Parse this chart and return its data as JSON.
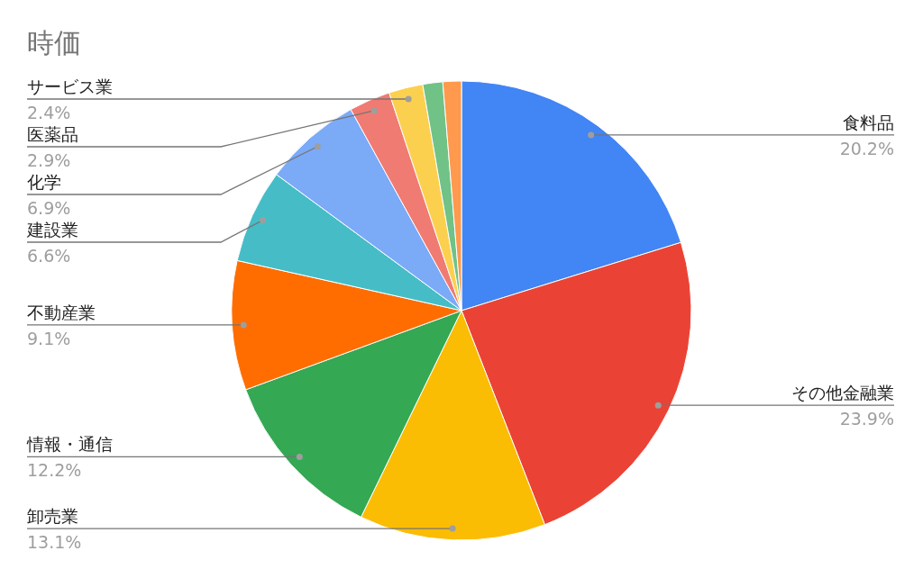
{
  "chart_data": {
    "type": "pie",
    "title": "時価",
    "categories": [
      "食料品",
      "その他金融業",
      "卸売業",
      "情報・通信",
      "不動産業",
      "建設業",
      "化学",
      "医薬品",
      "サービス業",
      null,
      null
    ],
    "values": [
      20.2,
      23.9,
      13.1,
      12.2,
      9.1,
      6.6,
      6.9,
      2.9,
      2.4,
      1.4,
      1.3
    ],
    "value_labels": [
      "20.2%",
      "23.9%",
      "13.1%",
      "12.2%",
      "9.1%",
      "6.6%",
      "6.9%",
      "2.9%",
      "2.4%",
      null,
      null
    ],
    "colors": [
      "#4285f4",
      "#ea4335",
      "#fbbc04",
      "#34a853",
      "#ff6d01",
      "#46bdc6",
      "#7baaf7",
      "#f07b72",
      "#fcd04f",
      "#71c287",
      "#ff994d"
    ]
  }
}
